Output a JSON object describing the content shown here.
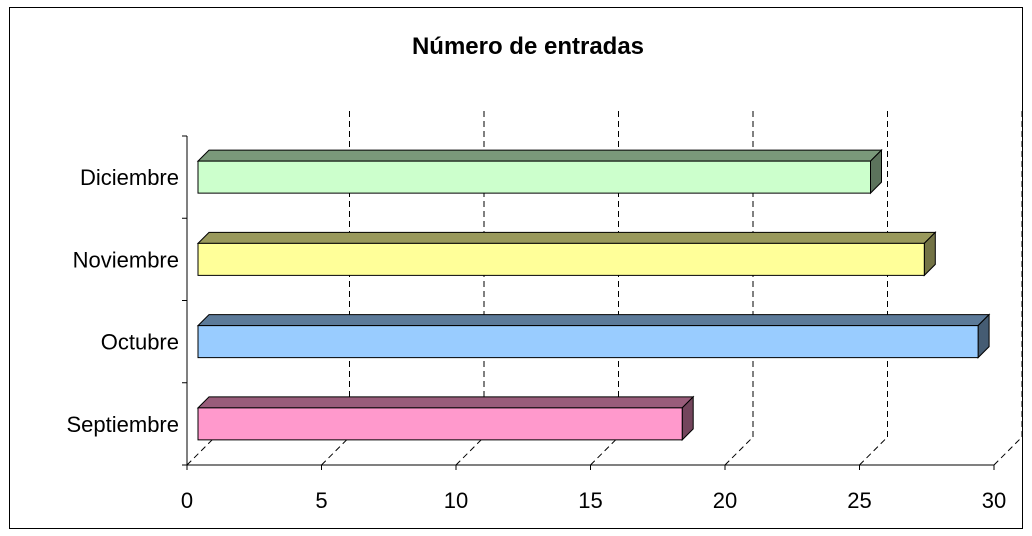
{
  "chart_data": {
    "type": "bar",
    "orientation": "horizontal",
    "title": "Número de entradas",
    "xlabel": "",
    "ylabel": "",
    "categories": [
      "Septiembre",
      "Octubre",
      "Noviembre",
      "Diciembre"
    ],
    "values": [
      18,
      29,
      27,
      25
    ],
    "colors": [
      "#FF99CC",
      "#99CCFF",
      "#FFFF99",
      "#CCFFCC"
    ],
    "xlim": [
      0,
      30
    ],
    "xticks": [
      "0",
      "5",
      "10",
      "15",
      "20",
      "25",
      "30"
    ],
    "grid": true,
    "legend": "none"
  }
}
